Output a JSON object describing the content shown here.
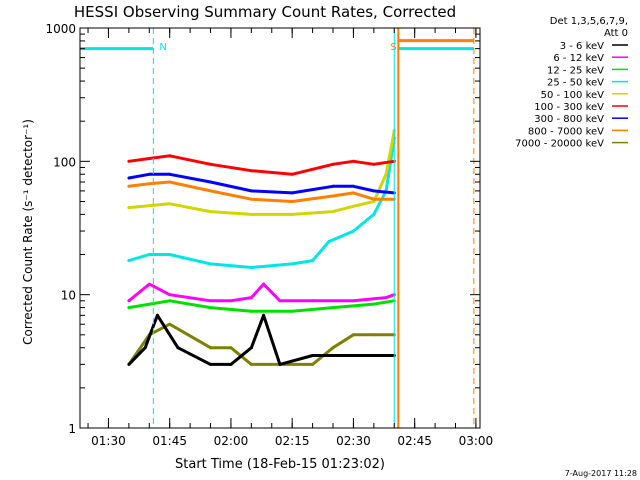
{
  "chart_data": {
    "type": "line",
    "title": "HESSI Observing Summary Count Rates, Corrected",
    "xlabel": "Start Time (18-Feb-15 01:23:02)",
    "ylabel": "Corrected Count Rate (s⁻¹ detector⁻¹)",
    "y_scale": "log",
    "ylim": [
      1,
      1000
    ],
    "xlim": [
      "01:23:02",
      "03:01:00"
    ],
    "x_ticks": [
      "01:30",
      "01:45",
      "02:00",
      "02:15",
      "02:30",
      "02:45",
      "03:00"
    ],
    "y_ticks": [
      "1",
      "10",
      "100",
      "1000"
    ],
    "legend_header": [
      "Det 1,3,5,6,7,9,",
      "Att 0"
    ],
    "legend_position": "right",
    "grid": false,
    "annotations": [
      {
        "text": "N",
        "x": "01:41:00",
        "color": "#00e5e5"
      },
      {
        "text": "S",
        "x": "02:41:00",
        "color": "#ff8000"
      }
    ],
    "markers": {
      "night_start": "01:41:00",
      "night_end": "02:40:00",
      "saa_start": "02:41:00",
      "saa_end": "02:59:30",
      "attenuator_level": 700
    },
    "series": [
      {
        "name": "3 - 6 keV",
        "color": "#000000",
        "x": [
          "01:35:00",
          "01:39:00",
          "01:42:00",
          "01:47:00",
          "01:55:00",
          "02:00:00",
          "02:05:00",
          "02:08:00",
          "02:12:00",
          "02:20:00",
          "02:30:00",
          "02:38:00",
          "02:40:00"
        ],
        "y": [
          3,
          4,
          7,
          4,
          3,
          3,
          4,
          7,
          3,
          3.5,
          3.5,
          3.5,
          3.5
        ]
      },
      {
        "name": "6 - 12 keV",
        "color": "#ff00ff",
        "x": [
          "01:35:00",
          "01:40:00",
          "01:45:00",
          "01:55:00",
          "02:00:00",
          "02:05:00",
          "02:08:00",
          "02:12:00",
          "02:20:00",
          "02:30:00",
          "02:38:00",
          "02:40:00"
        ],
        "y": [
          9,
          12,
          10,
          9,
          9,
          9.5,
          12,
          9,
          9,
          9,
          9.5,
          10
        ]
      },
      {
        "name": "12 - 25 keV",
        "color": "#00e000",
        "x": [
          "01:35:00",
          "01:45:00",
          "01:55:00",
          "02:05:00",
          "02:15:00",
          "02:25:00",
          "02:35:00",
          "02:40:00"
        ],
        "y": [
          8,
          9,
          8,
          7.5,
          7.5,
          8,
          8.5,
          9
        ]
      },
      {
        "name": "25 - 50 keV",
        "color": "#00e5e5",
        "x": [
          "01:35:00",
          "01:40:00",
          "01:45:00",
          "01:55:00",
          "02:05:00",
          "02:15:00",
          "02:20:00",
          "02:24:00",
          "02:30:00",
          "02:35:00",
          "02:38:00",
          "02:40:00"
        ],
        "y": [
          18,
          20,
          20,
          17,
          16,
          17,
          18,
          25,
          30,
          40,
          60,
          150
        ]
      },
      {
        "name": "50 - 100 keV",
        "color": "#d4d400",
        "x": [
          "01:35:00",
          "01:45:00",
          "01:55:00",
          "02:05:00",
          "02:15:00",
          "02:25:00",
          "02:30:00",
          "02:35:00",
          "02:38:00",
          "02:40:00"
        ],
        "y": [
          45,
          48,
          42,
          40,
          40,
          42,
          46,
          50,
          80,
          170
        ]
      },
      {
        "name": "100 - 300 keV",
        "color": "#ff0000",
        "x": [
          "01:35:00",
          "01:40:00",
          "01:45:00",
          "01:55:00",
          "02:05:00",
          "02:15:00",
          "02:25:00",
          "02:30:00",
          "02:35:00",
          "02:40:00"
        ],
        "y": [
          100,
          105,
          110,
          95,
          85,
          80,
          95,
          100,
          95,
          100
        ]
      },
      {
        "name": "300 - 800 keV",
        "color": "#0000ff",
        "x": [
          "01:35:00",
          "01:40:00",
          "01:45:00",
          "01:55:00",
          "02:05:00",
          "02:15:00",
          "02:25:00",
          "02:30:00",
          "02:35:00",
          "02:40:00"
        ],
        "y": [
          75,
          80,
          80,
          70,
          60,
          58,
          65,
          65,
          60,
          58
        ]
      },
      {
        "name": "800 - 7000 keV",
        "color": "#ff8000",
        "x": [
          "01:35:00",
          "01:40:00",
          "01:45:00",
          "01:55:00",
          "02:05:00",
          "02:15:00",
          "02:25:00",
          "02:30:00",
          "02:35:00",
          "02:40:00"
        ],
        "y": [
          65,
          68,
          70,
          60,
          52,
          50,
          55,
          58,
          52,
          52
        ]
      },
      {
        "name": "7000 - 20000 keV",
        "color": "#808000",
        "x": [
          "01:35:00",
          "01:40:00",
          "01:45:00",
          "01:55:00",
          "02:00:00",
          "02:05:00",
          "02:10:00",
          "02:20:00",
          "02:25:00",
          "02:30:00",
          "02:35:00",
          "02:40:00"
        ],
        "y": [
          3,
          5,
          6,
          4,
          4,
          3,
          3,
          3,
          4,
          5,
          5,
          5
        ]
      }
    ],
    "footer_timestamp": "7-Aug-2017 11:28"
  }
}
